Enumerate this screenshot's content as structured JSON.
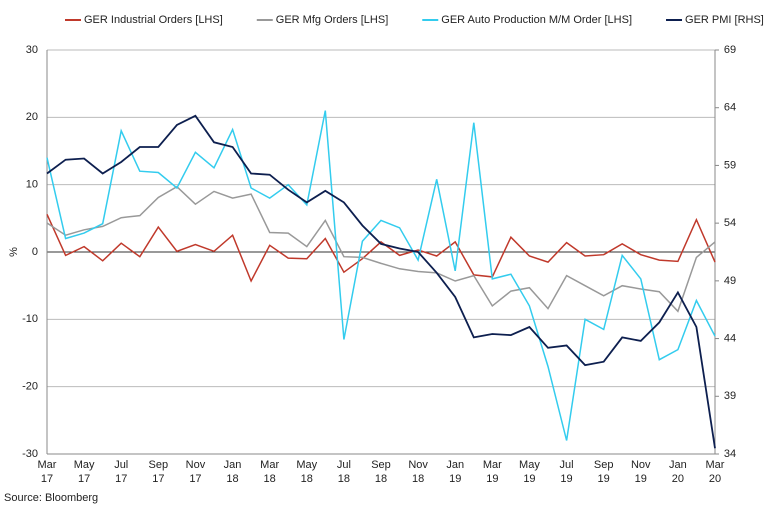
{
  "chart_data": {
    "type": "line",
    "categories": [
      "Mar\n17",
      null,
      "May\n17",
      null,
      "Jul\n17",
      null,
      "Sep\n17",
      null,
      "Nov\n17",
      null,
      "Jan\n18",
      null,
      "Mar\n18",
      null,
      "May\n18",
      null,
      "Jul\n18",
      null,
      "Sep\n18",
      null,
      "Nov\n18",
      null,
      "Jan\n19",
      null,
      "Mar\n19",
      null,
      "May\n19",
      null,
      "Jul\n19",
      null,
      "Sep\n19",
      null,
      "Nov\n19",
      null,
      "Jan\n20",
      null,
      "Mar\n20"
    ],
    "series": [
      {
        "name": "GER Industrial Orders [LHS]",
        "color": "#c0392b",
        "values": [
          5.6,
          -0.5,
          0.8,
          -1.3,
          1.3,
          -0.7,
          3.7,
          0.1,
          1.1,
          0.1,
          2.5,
          -4.3,
          1.0,
          -0.9,
          -1.0,
          2.0,
          -3.0,
          -1.0,
          1.5,
          -0.5,
          0.3,
          -0.6,
          1.5,
          -3.4,
          -3.7,
          2.2,
          -0.6,
          -1.5,
          1.4,
          -0.6,
          -0.4,
          1.2,
          -0.4,
          -1.2,
          -1.4,
          4.8,
          -1.5
        ]
      },
      {
        "name": "GER Mfg Orders [LHS]",
        "color": "#999999",
        "values": [
          4.3,
          2.5,
          3.3,
          3.8,
          5.1,
          5.4,
          8.1,
          9.7,
          7.1,
          9.0,
          8.0,
          8.6,
          2.9,
          2.8,
          0.8,
          4.7,
          -0.7,
          -0.8,
          -1.7,
          -2.5,
          -2.9,
          -3.1,
          -4.3,
          -3.5,
          -8.0,
          -5.8,
          -5.3,
          -8.4,
          -3.5,
          -5.0,
          -6.5,
          -5.0,
          -5.5,
          -5.9,
          -8.8,
          -0.8,
          1.5
        ]
      },
      {
        "name": "GER Auto Production M/M Order [LHS]",
        "color": "#33ccee",
        "values": [
          14.0,
          2.0,
          2.8,
          4.2,
          18.0,
          12.0,
          11.8,
          9.5,
          14.8,
          12.5,
          18.2,
          9.5,
          8.0,
          10.0,
          7.0,
          21.0,
          -13.0,
          1.6,
          4.7,
          3.6,
          -1.2,
          10.8,
          -2.8,
          19.2,
          -4.0,
          -3.3,
          -8.0,
          -17.0,
          -28.0,
          -10.0,
          -11.5,
          -0.5,
          -4.0,
          -16.0,
          -14.5,
          -7.2,
          -12.5
        ]
      },
      {
        "name": "GER PMI [RHS]",
        "color": "#0d1f4f",
        "axis": "y2",
        "values": [
          58.3,
          59.5,
          59.6,
          58.3,
          59.3,
          60.6,
          60.6,
          62.5,
          63.3,
          61.0,
          60.6,
          58.3,
          58.2,
          56.9,
          55.8,
          56.8,
          55.8,
          53.8,
          52.2,
          51.8,
          51.5,
          49.7,
          47.6,
          44.1,
          44.4,
          44.3,
          45.0,
          43.2,
          43.4,
          41.7,
          42.0,
          44.1,
          43.8,
          45.4,
          48.0,
          45.0,
          34.5
        ]
      }
    ],
    "ylabel": "%",
    "ylim": [
      -30,
      30
    ],
    "yticks": [
      -30,
      -20,
      -10,
      0,
      10,
      20,
      30
    ],
    "y2lim": [
      34,
      69
    ],
    "y2ticks": [
      34,
      39,
      44,
      49,
      54,
      59,
      64,
      69
    ],
    "grid": true,
    "legend": "top",
    "source": "Source: Bloomberg"
  }
}
